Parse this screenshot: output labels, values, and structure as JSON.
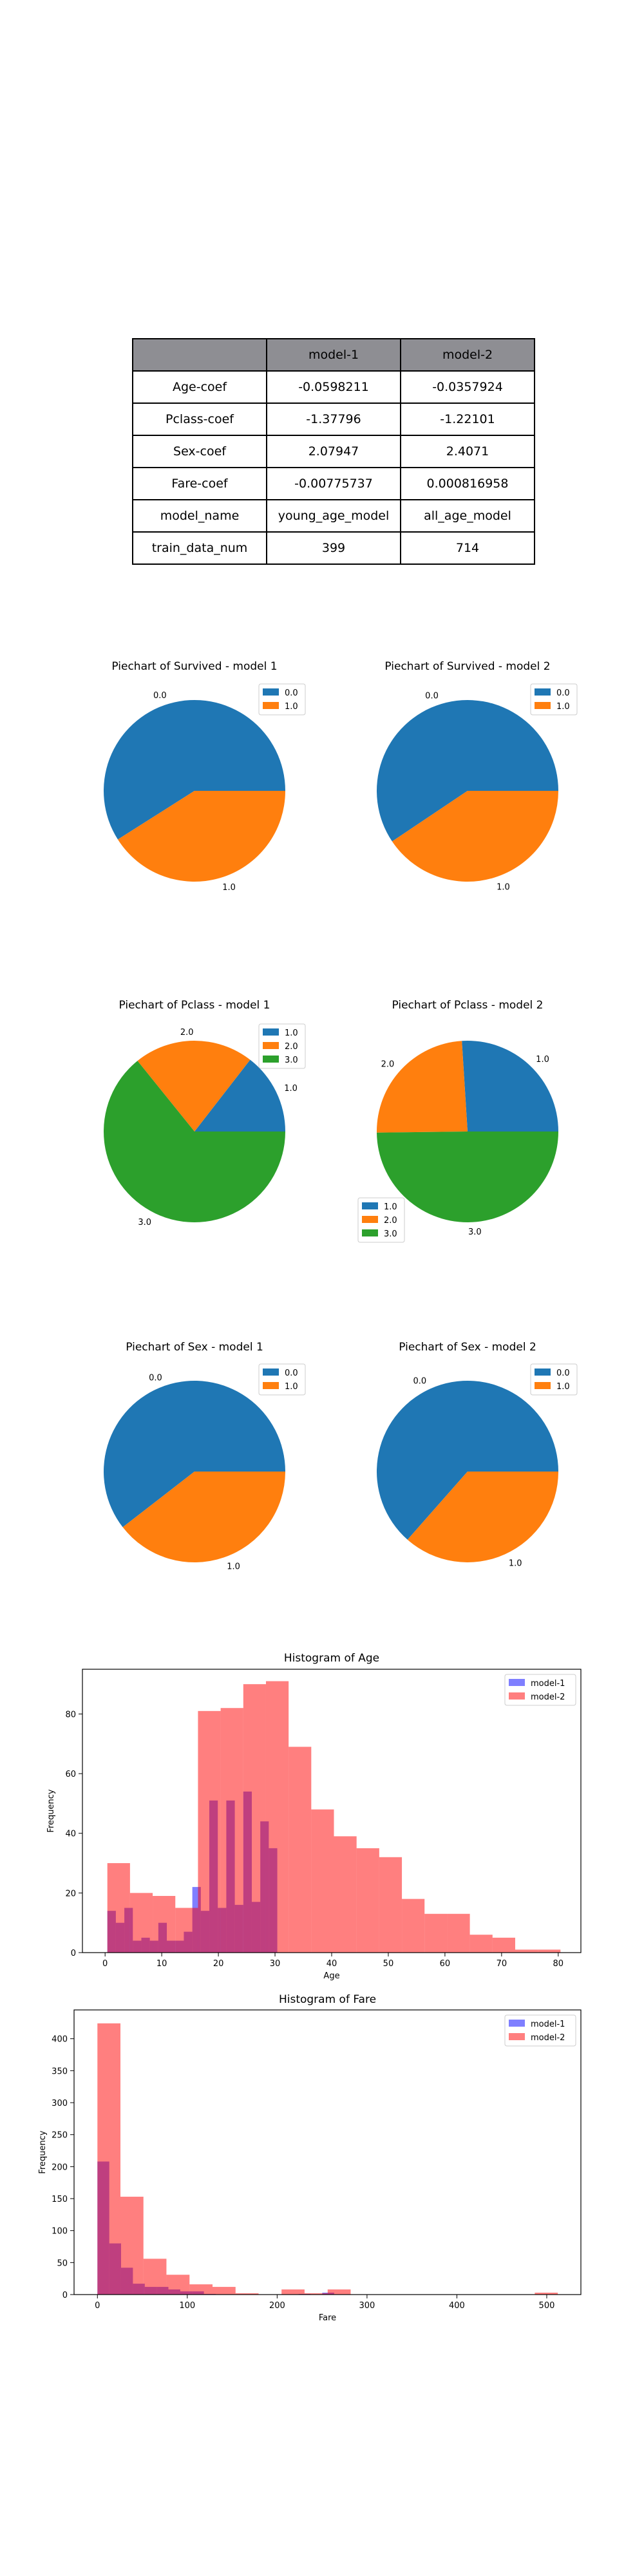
{
  "table": {
    "headers": [
      "",
      "model-1",
      "model-2"
    ],
    "rows": [
      [
        "Age-coef",
        "-0.0598211",
        "-0.0357924"
      ],
      [
        "Pclass-coef",
        "-1.37796",
        "-1.22101"
      ],
      [
        "Sex-coef",
        "2.07947",
        "2.4071"
      ],
      [
        "Fare-coef",
        "-0.00775737",
        "0.000816958"
      ],
      [
        "model_name",
        "young_age_model",
        "all_age_model"
      ],
      [
        "train_data_num",
        "399",
        "714"
      ]
    ]
  },
  "chart_data": [
    {
      "type": "pie",
      "title": "Piechart of Survived - model 1",
      "labels": [
        "0.0",
        "1.0"
      ],
      "values": [
        0.59,
        0.41
      ],
      "colors": [
        "#1f77b4",
        "#ff7f0e"
      ],
      "legend": "upper-right"
    },
    {
      "type": "pie",
      "title": "Piechart of Survived - model 2",
      "labels": [
        "0.0",
        "1.0"
      ],
      "values": [
        0.594,
        0.406
      ],
      "colors": [
        "#1f77b4",
        "#ff7f0e"
      ],
      "legend": "upper-right"
    },
    {
      "type": "pie",
      "title": "Piechart of Pclass - model 1",
      "labels": [
        "1.0",
        "2.0",
        "3.0"
      ],
      "values": [
        0.145,
        0.213,
        0.642
      ],
      "colors": [
        "#1f77b4",
        "#ff7f0e",
        "#2ca02c"
      ],
      "legend": "upper-right"
    },
    {
      "type": "pie",
      "title": "Piechart of Pclass - model 2",
      "labels": [
        "1.0",
        "2.0",
        "3.0"
      ],
      "values": [
        0.26,
        0.242,
        0.498
      ],
      "colors": [
        "#1f77b4",
        "#ff7f0e",
        "#2ca02c"
      ],
      "legend": "lower-left"
    },
    {
      "type": "pie",
      "title": "Piechart of Sex - model 1",
      "labels": [
        "0.0",
        "1.0"
      ],
      "values": [
        0.605,
        0.395
      ],
      "colors": [
        "#1f77b4",
        "#ff7f0e"
      ],
      "legend": "upper-right"
    },
    {
      "type": "pie",
      "title": "Piechart of Sex - model 2",
      "labels": [
        "0.0",
        "1.0"
      ],
      "values": [
        0.635,
        0.365
      ],
      "colors": [
        "#1f77b4",
        "#ff7f0e"
      ],
      "legend": "upper-right"
    },
    {
      "type": "histogram",
      "title": "Histogram of Age",
      "xlabel": "Age",
      "ylabel": "Frequency",
      "xlim": [
        -4,
        84
      ],
      "ylim": [
        0,
        95
      ],
      "xticks": [
        0,
        10,
        20,
        30,
        40,
        50,
        60,
        70,
        80
      ],
      "yticks": [
        0,
        20,
        40,
        60,
        80
      ],
      "legend": "upper-right",
      "series": [
        {
          "name": "model-1",
          "color": "#0000ff",
          "alpha": 0.5,
          "edges": [
            0.4,
            1.9,
            3.4,
            4.9,
            6.4,
            7.9,
            9.4,
            10.9,
            12.4,
            13.9,
            15.4,
            16.9,
            18.4,
            19.9,
            21.4,
            22.9,
            24.4,
            25.9,
            27.4,
            28.9,
            30.4
          ],
          "counts": [
            14,
            10,
            15,
            4,
            5,
            4,
            10,
            4,
            4,
            7,
            22,
            14,
            51,
            15,
            51,
            16,
            54,
            17,
            44,
            35
          ]
        },
        {
          "name": "model-2",
          "color": "#ff0000",
          "alpha": 0.5,
          "edges": [
            0.4,
            4.4,
            8.4,
            12.4,
            16.4,
            20.4,
            24.4,
            28.4,
            32.4,
            36.4,
            40.4,
            44.4,
            48.4,
            52.4,
            56.4,
            60.4,
            64.4,
            68.4,
            72.4,
            76.4,
            80.4
          ],
          "counts": [
            30,
            20,
            19,
            15,
            81,
            82,
            90,
            91,
            69,
            48,
            39,
            35,
            32,
            18,
            13,
            13,
            6,
            5,
            1,
            1
          ]
        }
      ]
    },
    {
      "type": "histogram",
      "title": "Histogram of Fare",
      "xlabel": "Fare",
      "ylabel": "Frequency",
      "xlim": [
        -26,
        538
      ],
      "ylim": [
        0,
        445
      ],
      "xticks": [
        0,
        100,
        200,
        300,
        400,
        500
      ],
      "yticks": [
        0,
        50,
        100,
        150,
        200,
        250,
        300,
        350,
        400
      ],
      "legend": "upper-right",
      "series": [
        {
          "name": "model-1",
          "color": "#0000ff",
          "alpha": 0.5,
          "edges": [
            0,
            13.2,
            26.3,
            39.5,
            52.7,
            65.8,
            79,
            92.2,
            105.4,
            118.5,
            131.7,
            144.9,
            158,
            171.2,
            184.4,
            197.5,
            210.7,
            223.9,
            237.1,
            250.2,
            263.4
          ],
          "counts": [
            208,
            80,
            42,
            17,
            12,
            12,
            8,
            5,
            5,
            1,
            0,
            0,
            0,
            0,
            0,
            0,
            0,
            1,
            0,
            3
          ]
        },
        {
          "name": "model-2",
          "color": "#ff0000",
          "alpha": 0.5,
          "edges": [
            0,
            25.6,
            51.2,
            76.8,
            102.5,
            128.1,
            153.7,
            179.3,
            204.9,
            230.5,
            256.2,
            281.8,
            307.4,
            333,
            358.6,
            384.2,
            409.9,
            435.5,
            461.1,
            486.7,
            512.3
          ],
          "counts": [
            424,
            153,
            56,
            31,
            16,
            12,
            2,
            0,
            8,
            2,
            8,
            0,
            0,
            0,
            0,
            0,
            0,
            0,
            0,
            3
          ]
        }
      ]
    }
  ]
}
